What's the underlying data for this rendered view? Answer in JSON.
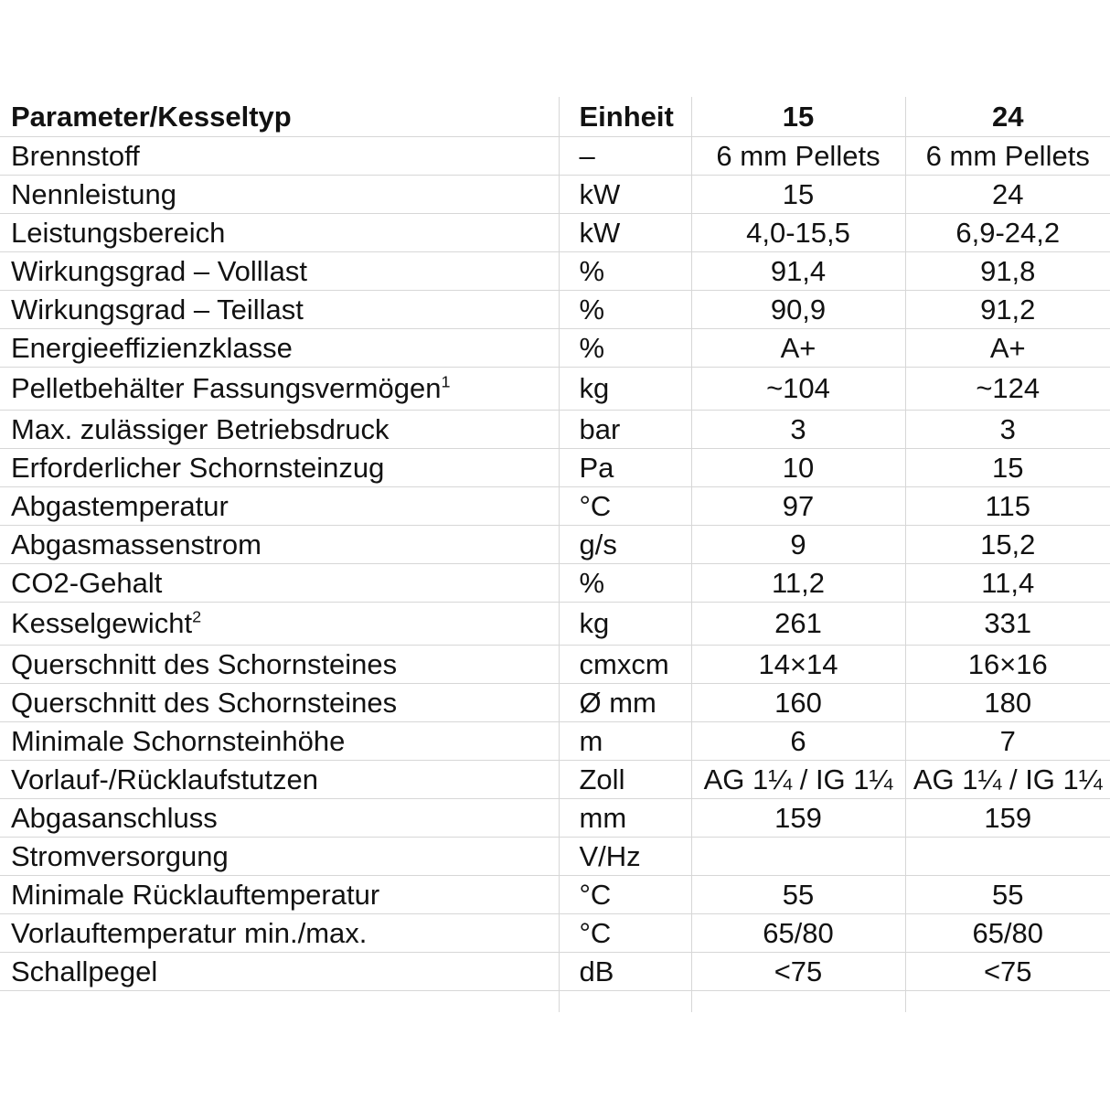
{
  "header": {
    "param": "Parameter/Kesseltyp",
    "unit": "Einheit",
    "col15": "15",
    "col24": "24"
  },
  "rows": [
    {
      "param": "Brennstoff",
      "sup": "",
      "unit": "–",
      "v15": "6 mm Pellets",
      "v24": "6 mm Pellets"
    },
    {
      "param": "Nennleistung",
      "sup": "",
      "unit": "kW",
      "v15": "15",
      "v24": "24"
    },
    {
      "param": "Leistungsbereich",
      "sup": "",
      "unit": "kW",
      "v15": "4,0-15,5",
      "v24": "6,9-24,2"
    },
    {
      "param": "Wirkungsgrad – Volllast",
      "sup": "",
      "unit": "%",
      "v15": "91,4",
      "v24": "91,8"
    },
    {
      "param": "Wirkungsgrad – Teillast",
      "sup": "",
      "unit": "%",
      "v15": "90,9",
      "v24": "91,2"
    },
    {
      "param": "Energieeffizienzklasse",
      "sup": "",
      "unit": "%",
      "v15": "A+",
      "v24": "A+"
    },
    {
      "param": "Pelletbehälter Fassungsvermögen",
      "sup": "1",
      "unit": "kg",
      "v15": "~104",
      "v24": "~124"
    },
    {
      "param": "Max. zulässiger Betriebsdruck",
      "sup": "",
      "unit": "bar",
      "v15": "3",
      "v24": "3"
    },
    {
      "param": "Erforderlicher Schornsteinzug",
      "sup": "",
      "unit": "Pa",
      "v15": "10",
      "v24": "15"
    },
    {
      "param": "Abgastemperatur",
      "sup": "",
      "unit": "°C",
      "v15": "97",
      "v24": "115"
    },
    {
      "param": "Abgasmassenstrom",
      "sup": "",
      "unit": "g/s",
      "v15": "9",
      "v24": "15,2"
    },
    {
      "param": "CO2-Gehalt",
      "sup": "",
      "unit": "%",
      "v15": "11,2",
      "v24": "11,4"
    },
    {
      "param": "Kesselgewicht",
      "sup": "2",
      "unit": "kg",
      "v15": "261",
      "v24": "331"
    },
    {
      "param": "Querschnitt des Schornsteines",
      "sup": "",
      "unit": "cmxcm",
      "v15": "14×14",
      "v24": "16×16"
    },
    {
      "param": "Querschnitt des Schornsteines",
      "sup": "",
      "unit": "Ø mm",
      "v15": "160",
      "v24": "180"
    },
    {
      "param": "Minimale Schornsteinhöhe",
      "sup": "",
      "unit": "m",
      "v15": "6",
      "v24": "7"
    },
    {
      "param": "Vorlauf-/Rücklaufstutzen",
      "sup": "",
      "unit": "Zoll",
      "v15": "AG 1¼ / IG 1¼",
      "v24": "AG 1¼ / IG 1¼"
    },
    {
      "param": "Abgasanschluss",
      "sup": "",
      "unit": "mm",
      "v15": "159",
      "v24": "159"
    },
    {
      "param": "Stromversorgung",
      "sup": "",
      "unit": "V/Hz",
      "v15": "",
      "v24": ""
    },
    {
      "param": "Minimale Rücklauftemperatur",
      "sup": "",
      "unit": "°C",
      "v15": "55",
      "v24": "55"
    },
    {
      "param": "Vorlauftemperatur min./max.",
      "sup": "",
      "unit": "°C",
      "v15": "65/80",
      "v24": "65/80"
    },
    {
      "param": "Schallpegel",
      "sup": "",
      "unit": "dB",
      "v15": "<75",
      "v24": "<75"
    }
  ]
}
